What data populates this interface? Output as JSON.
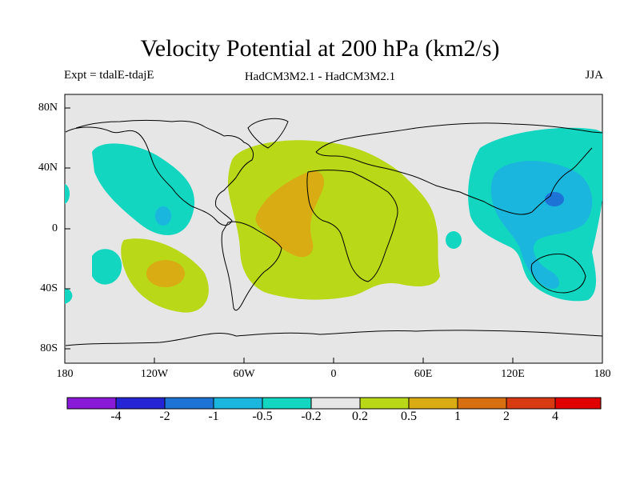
{
  "title": "Velocity Potential at 200 hPa (km2/s)",
  "experiment": "Expt = tdalE-tdajE",
  "models": "HadCM3M2.1 - HadCM3M2.1",
  "season": "JJA",
  "lat_labels": [
    "80N",
    "40N",
    "0",
    "40S",
    "80S"
  ],
  "lon_labels": [
    "180",
    "120W",
    "60W",
    "0",
    "60E",
    "120E",
    "180"
  ],
  "colorbar": {
    "labels": [
      "-4",
      "-2",
      "-1",
      "-0.5",
      "-0.2",
      "0.2",
      "0.5",
      "1",
      "2",
      "4"
    ],
    "colors": [
      "#8a19d9",
      "#2525d6",
      "#1e73d6",
      "#1bb6dd",
      "#12d6c0",
      "#e6e6e6",
      "#b8d818",
      "#d8ac12",
      "#d87012",
      "#d83a12",
      "#e00000"
    ]
  },
  "colors": {
    "land_bg": "#e6e6e6",
    "cyan": "#12d6c0",
    "light_blue": "#1bb6dd",
    "mid_blue": "#1e73d6",
    "yellow_green": "#b8d818",
    "orange": "#d8ac12"
  }
}
